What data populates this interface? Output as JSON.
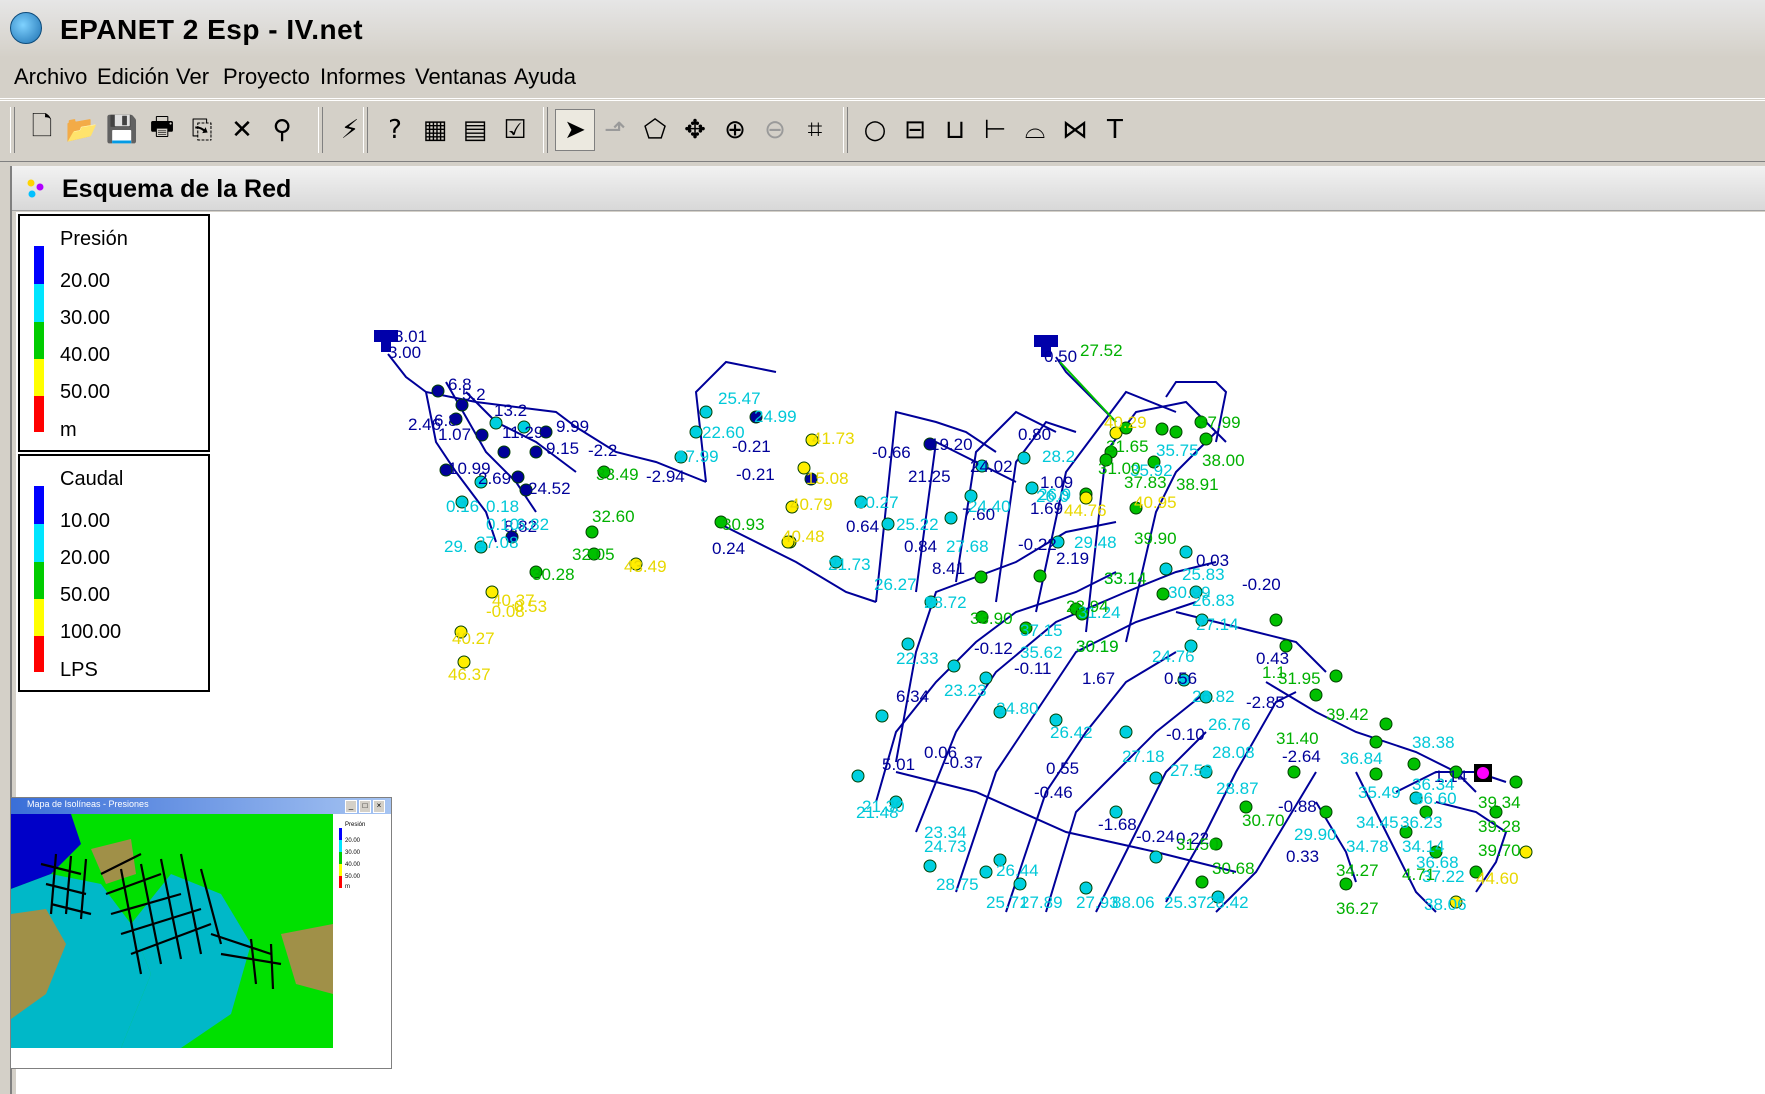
{
  "window": {
    "title": "EPANET 2 Esp - IV.net"
  },
  "menu": [
    "Archivo",
    "Edición",
    "Ver",
    "Proyecto",
    "Informes",
    "Ventanas",
    "Ayuda"
  ],
  "toolbar": {
    "buttons": [
      {
        "name": "new-icon",
        "glyph": "🗋"
      },
      {
        "name": "open-icon",
        "glyph": "📂"
      },
      {
        "name": "save-icon",
        "glyph": "💾"
      },
      {
        "name": "print-icon",
        "glyph": "🖶"
      },
      {
        "name": "copy-icon",
        "glyph": "⎘"
      },
      {
        "name": "delete-icon",
        "glyph": "✕"
      },
      {
        "name": "find-icon",
        "glyph": "⚲"
      },
      {
        "name": "run-icon",
        "glyph": "⚡"
      },
      {
        "name": "query-icon",
        "glyph": "?"
      },
      {
        "name": "graph-icon",
        "glyph": "▦"
      },
      {
        "name": "table-icon",
        "glyph": "▤"
      },
      {
        "name": "options-icon",
        "glyph": "☑"
      },
      {
        "name": "select-arrow-icon",
        "glyph": "➤"
      },
      {
        "name": "select-vertex-icon",
        "glyph": "⬏"
      },
      {
        "name": "select-region-icon",
        "glyph": "⬠"
      },
      {
        "name": "pan-icon",
        "glyph": "✥"
      },
      {
        "name": "zoom-in-icon",
        "glyph": "⊕"
      },
      {
        "name": "zoom-out-icon",
        "glyph": "⊖"
      },
      {
        "name": "full-extent-icon",
        "glyph": "⌗"
      },
      {
        "name": "add-junction-icon",
        "glyph": "○"
      },
      {
        "name": "add-reservoir-icon",
        "glyph": "⊟"
      },
      {
        "name": "add-tank-icon",
        "glyph": "⊔"
      },
      {
        "name": "add-pipe-icon",
        "glyph": "⊢"
      },
      {
        "name": "add-pump-icon",
        "glyph": "⌓"
      },
      {
        "name": "add-valve-icon",
        "glyph": "⋈"
      },
      {
        "name": "add-label-icon",
        "glyph": "T"
      }
    ]
  },
  "map_window": {
    "title": "Esquema de la Red"
  },
  "legend_pressure": {
    "title": "Presión",
    "values": [
      "20.00",
      "30.00",
      "40.00",
      "50.00"
    ],
    "unit": "m",
    "colors": [
      "#0000ff",
      "#00e5ff",
      "#00cc00",
      "#ffff00",
      "#ff0000"
    ]
  },
  "legend_flow": {
    "title": "Caudal",
    "values": [
      "10.00",
      "20.00",
      "50.00",
      "100.00"
    ],
    "unit": "LPS",
    "colors": [
      "#0000ff",
      "#00e5ff",
      "#00cc00",
      "#ffff00",
      "#ff0000"
    ]
  },
  "map_labels": {
    "reservoir_1": [
      "3.01",
      "3.00"
    ],
    "reservoir_2": [
      "0.50",
      "27.52"
    ],
    "dark_blue": [
      "6.8",
      "6.8",
      "5.2",
      "13.2",
      "9.99",
      "2.46",
      "1.07",
      "11.29",
      "10.99",
      "9.15",
      "2.69",
      "8.82",
      "24.52",
      "-0.21",
      "-0.21",
      "-0.66",
      "19.20",
      "21.25",
      "24.02",
      "0.80",
      "1.09",
      "1.69",
      "-0.12",
      "-0.11",
      "2.19",
      "-0.22",
      "7.60",
      "1.67",
      "0.56",
      "0.55",
      "-0.37",
      "5.01",
      "6.34",
      "0.64",
      "0.84",
      "0.24",
      "-2.94",
      "-2.2",
      "8.41",
      "-0.10",
      "0.22",
      "0.33",
      "-2.64",
      "-0.20",
      "0.03",
      "-2.85",
      "0.43",
      "1.14",
      "-0.88",
      "-1.68",
      "-0.24",
      "-0.46",
      "0.06"
    ],
    "cyan": [
      "25.47",
      "24.99",
      "22.60",
      "27.99",
      "20.27",
      "25.22",
      "27.68",
      "21.73",
      "26.27",
      "28.72",
      "22.33",
      "23.23",
      "24.80",
      "21.48",
      "21.30",
      "23.34",
      "24.73",
      "28.75",
      "26.44",
      "25.71",
      "27.89",
      "27.93",
      "88.06",
      "25.37",
      "28.42",
      "26.42",
      "27.18",
      "27.59",
      "28.87",
      "28.08",
      "26.76",
      "26.82",
      "24.76",
      "27.14",
      "26.83",
      "25.83",
      "30.99",
      "29.90",
      "36.84",
      "35.49",
      "34.45",
      "36.23",
      "34.78",
      "34.14",
      "36.68",
      "37.22",
      "38.06",
      "29.48",
      "28.2",
      "26.9",
      "24.40",
      "26.0",
      "6.82",
      "0.16",
      "0.18",
      "0.10",
      "27.08",
      "29.",
      "33.14",
      "30.19",
      "35.62",
      "31.24",
      "37.15",
      "35.75",
      "35.92",
      "36.60",
      "36.34",
      "38.38"
    ],
    "green": [
      "33.49",
      "32.60",
      "32.05",
      "30.28",
      "30.93",
      "31.65",
      "31.00",
      "37.83",
      "39.90",
      "37.99",
      "38.00",
      "38.91",
      "33.90",
      "31.95",
      "39.42",
      "31.40",
      "30.70",
      "31.50",
      "30.68",
      "39.34",
      "39.28",
      "39.70",
      "34.27",
      "4.71",
      "36.27",
      "33.14",
      "30.19",
      "1.1",
      "28.94"
    ],
    "yellow": [
      "41.73",
      "40.29",
      "40.79",
      "40.48",
      "43.49",
      "40.37",
      "40.27",
      "46.37",
      "-0.08",
      "0.53",
      "40.95",
      "44.76",
      "44.60",
      "15.08"
    ]
  },
  "mini_map": {
    "title": "Mapa de Isolíneas - Presiones",
    "legend_title": "Presión",
    "legend_values": [
      "20.00",
      "30.00",
      "40.00",
      "50.00"
    ],
    "legend_unit": "m"
  }
}
